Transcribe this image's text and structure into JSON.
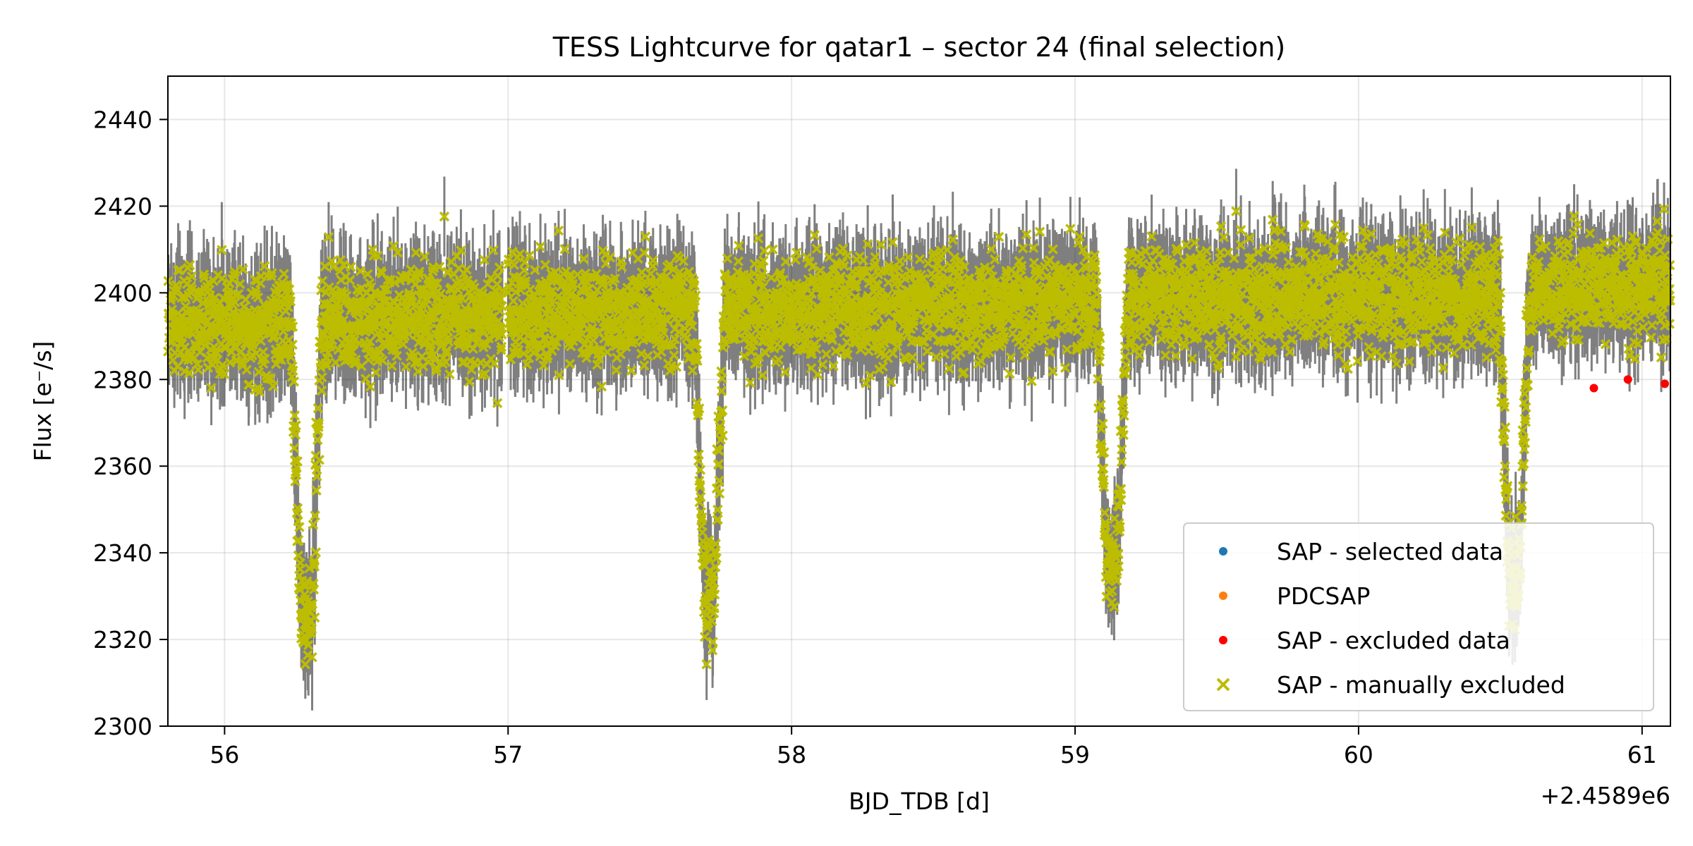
{
  "chart_data": {
    "type": "scatter",
    "title": "TESS Lightcurve for qatar1 – sector 24 (final selection)",
    "xlabel": "BJD_TDB [d]",
    "ylabel": "Flux [e⁻/s]",
    "x_offset_label": "+2.4589e6",
    "xlim": [
      55.8,
      61.1
    ],
    "ylim": [
      2300,
      2450
    ],
    "x_ticks": [
      56,
      57,
      58,
      59,
      60,
      61
    ],
    "x_tick_labels": [
      "56",
      "57",
      "58",
      "59",
      "60",
      "61"
    ],
    "y_ticks": [
      2300,
      2320,
      2340,
      2360,
      2380,
      2400,
      2420,
      2440
    ],
    "y_tick_labels": [
      "2300",
      "2320",
      "2340",
      "2360",
      "2380",
      "2400",
      "2420",
      "2440"
    ],
    "grid": true,
    "legend_position": "lower-right",
    "baseline": {
      "x": [
        55.8,
        56.25,
        56.35,
        57.65,
        57.8,
        59.05,
        59.18,
        60.5,
        60.6,
        61.1
      ],
      "y": [
        2393,
        2393,
        2394,
        2396,
        2396,
        2398,
        2399,
        2399,
        2400,
        2402
      ]
    },
    "scatter_sigma": 6,
    "errorbar_sigma": 8,
    "transits": [
      {
        "center": 56.29,
        "depth": 70
      },
      {
        "center": 57.71,
        "depth": 65
      },
      {
        "center": 59.13,
        "depth": 63
      },
      {
        "center": 60.55,
        "depth": 65
      }
    ],
    "transit_half_width": 0.055,
    "data_gap": [
      56.98,
      57.0
    ],
    "series": [
      {
        "name": "SAP - selected data",
        "marker": "dot",
        "color": "#1f77b4"
      },
      {
        "name": "PDCSAP",
        "marker": "dot",
        "color": "#ff7f0e"
      },
      {
        "name": "SAP - excluded data",
        "marker": "dot",
        "color": "#ff0000",
        "x": [
          60.83,
          60.95,
          61.08
        ],
        "y": [
          2378,
          2380,
          2379
        ]
      },
      {
        "name": "SAP - manually excluded",
        "marker": "x",
        "color": "#bcbd00"
      }
    ],
    "errorbar_color": "#000000"
  }
}
